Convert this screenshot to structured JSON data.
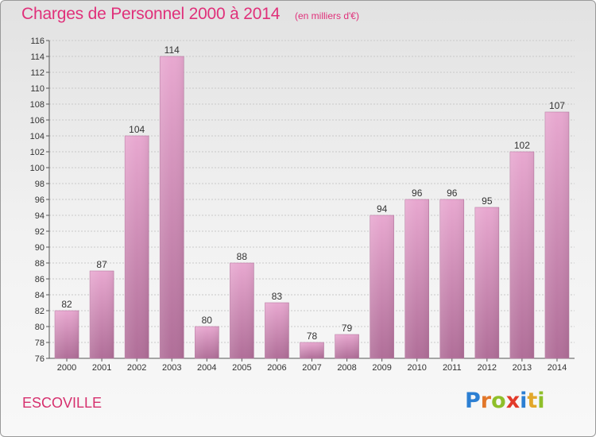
{
  "header": {
    "title": "Charges de Personnel 2000 à 2014",
    "subtitle": "(en milliers d'€)"
  },
  "footer": {
    "commune": "ESCOVILLE",
    "logo_letters": [
      {
        "char": "P",
        "color": "#2c7fd3"
      },
      {
        "char": "r",
        "color": "#e2772a"
      },
      {
        "char": "o",
        "color": "#8fbf2a"
      },
      {
        "char": "x",
        "color": "#e23a2a"
      },
      {
        "char": "i",
        "color": "#2c7fd3"
      },
      {
        "char": "t",
        "color": "#e2a72a"
      },
      {
        "char": "i",
        "color": "#8fbf2a"
      }
    ]
  },
  "chart_data": {
    "type": "bar",
    "title": "Charges de Personnel 2000 à 2014",
    "subtitle": "(en milliers d'€)",
    "categories": [
      "2000",
      "2001",
      "2002",
      "2003",
      "2004",
      "2005",
      "2006",
      "2007",
      "2008",
      "2009",
      "2010",
      "2011",
      "2012",
      "2013",
      "2014"
    ],
    "values": [
      82,
      87,
      104,
      114,
      80,
      88,
      83,
      78,
      79,
      94,
      96,
      96,
      95,
      102,
      107
    ],
    "ylim": [
      76,
      116
    ],
    "yticks": [
      76,
      78,
      80,
      82,
      84,
      86,
      88,
      90,
      92,
      94,
      96,
      98,
      100,
      102,
      104,
      106,
      108,
      110,
      112,
      114,
      116
    ],
    "grid": true,
    "bar_color_top": "#e8a8d0",
    "bar_color_bottom": "#b06e98",
    "label_color": "#333333"
  }
}
